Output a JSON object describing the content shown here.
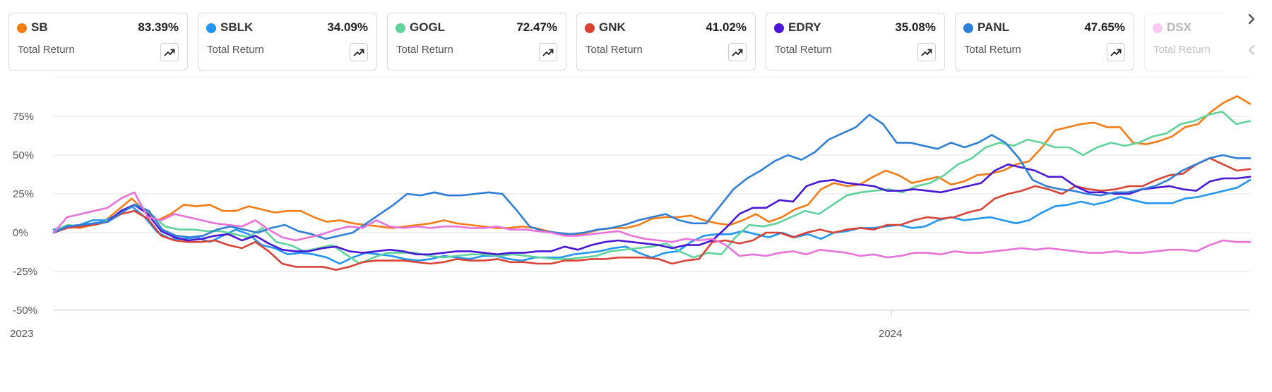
{
  "cards": [
    {
      "ticker": "SB",
      "value": "83.39%",
      "label": "Total Return",
      "color": "#f57c14",
      "faded": false
    },
    {
      "ticker": "SBLK",
      "value": "34.09%",
      "label": "Total Return",
      "color": "#2196f3",
      "faded": false
    },
    {
      "ticker": "GOGL",
      "value": "72.47%",
      "label": "Total Return",
      "color": "#5fd39a",
      "faded": false
    },
    {
      "ticker": "GNK",
      "value": "41.02%",
      "label": "Total Return",
      "color": "#d94335",
      "faded": false
    },
    {
      "ticker": "EDRY",
      "value": "35.08%",
      "label": "Total Return",
      "color": "#4a16d6",
      "faded": false
    },
    {
      "ticker": "PANL",
      "value": "47.65%",
      "label": "Total Return",
      "color": "#2f7fd8",
      "faded": false
    },
    {
      "ticker": "DSX",
      "value": "",
      "label": "Total Return",
      "color": "#e872d9",
      "faded": true
    }
  ],
  "icons": {
    "next": "chevron-right-icon",
    "prev": "chevron-left-icon",
    "trend": "trending-up-icon"
  },
  "chart_data": {
    "type": "line",
    "title": "",
    "xlabel": "",
    "ylabel": "",
    "x_ticks": [
      "2023",
      "2024"
    ],
    "y_ticks": [
      "75%",
      "50%",
      "25%",
      "0%",
      "-25%",
      "-50%"
    ],
    "ylim": [
      -50,
      100
    ],
    "grid": true,
    "x_range": [
      "2023-01",
      "2024-05"
    ],
    "series": [
      {
        "name": "SB",
        "color": "#f57c14",
        "values": [
          0,
          4,
          3,
          5,
          8,
          15,
          22,
          14,
          8,
          12,
          18,
          17,
          18,
          14,
          14,
          17,
          15,
          13,
          14,
          14,
          10,
          7,
          8,
          6,
          5,
          4,
          3,
          4,
          5,
          6,
          8,
          6,
          5,
          4,
          3,
          3,
          4,
          3,
          1,
          -1,
          -2,
          0,
          2,
          3,
          3,
          5,
          9,
          10,
          10,
          11,
          8,
          6,
          5,
          8,
          12,
          7,
          10,
          15,
          18,
          28,
          32,
          30,
          31,
          36,
          40,
          37,
          32,
          34,
          36,
          31,
          33,
          37,
          38,
          40,
          44,
          46,
          55,
          66,
          68,
          70,
          71,
          68,
          68,
          58,
          57,
          59,
          62,
          68,
          70,
          78,
          84,
          88,
          83
        ]
      },
      {
        "name": "SBLK",
        "color": "#2196f3",
        "values": [
          2,
          4,
          5,
          8,
          8,
          12,
          17,
          10,
          0,
          -4,
          -4,
          -3,
          -6,
          -2,
          2,
          -1,
          -8,
          -10,
          -14,
          -13,
          -14,
          -16,
          -20,
          -16,
          -13,
          -14,
          -15,
          -17,
          -18,
          -17,
          -15,
          -16,
          -17,
          -15,
          -15,
          -17,
          -18,
          -16,
          -16,
          -16,
          -14,
          -13,
          -12,
          -10,
          -9,
          -13,
          -16,
          -13,
          -12,
          -6,
          -2,
          -1,
          -1,
          1,
          -1,
          -3,
          0,
          -3,
          -1,
          -4,
          0,
          1,
          3,
          3,
          4,
          5,
          3,
          4,
          8,
          10,
          8,
          9,
          10,
          8,
          6,
          8,
          13,
          17,
          18,
          20,
          18,
          20,
          23,
          21,
          19,
          19,
          19,
          22,
          23,
          25,
          27,
          29,
          34
        ]
      },
      {
        "name": "GOGL",
        "color": "#5fd39a",
        "values": [
          1,
          5,
          4,
          6,
          8,
          14,
          18,
          12,
          4,
          2,
          2,
          1,
          1,
          -1,
          -3,
          3,
          -6,
          -8,
          -12,
          -10,
          -8,
          -14,
          -20,
          -16,
          -13,
          -13,
          -13,
          -15,
          -16,
          -15,
          -14,
          -14,
          -15,
          -14,
          -15,
          -16,
          -17,
          -17,
          -16,
          -15,
          -12,
          -11,
          -10,
          -9,
          -7,
          -12,
          -16,
          -13,
          -14,
          -3,
          5,
          4,
          6,
          10,
          14,
          12,
          18,
          24,
          26,
          27,
          28,
          26,
          30,
          32,
          37,
          44,
          48,
          55,
          58,
          56,
          60,
          58,
          55,
          55,
          50,
          55,
          58,
          56,
          58,
          62,
          64,
          70,
          72,
          76,
          78,
          70,
          72
        ]
      },
      {
        "name": "GNK",
        "color": "#d94335",
        "values": [
          0,
          3,
          4,
          5,
          7,
          12,
          14,
          9,
          -2,
          -5,
          -6,
          -6,
          -5,
          -8,
          -10,
          -6,
          -12,
          -20,
          -22,
          -22,
          -22,
          -24,
          -22,
          -19,
          -18,
          -18,
          -18,
          -19,
          -20,
          -19,
          -17,
          -18,
          -18,
          -17,
          -19,
          -19,
          -20,
          -20,
          -18,
          -18,
          -17,
          -17,
          -16,
          -16,
          -16,
          -17,
          -20,
          -18,
          -17,
          -6,
          -5,
          -7,
          -5,
          0,
          0,
          -3,
          0,
          2,
          0,
          2,
          3,
          2,
          5,
          5,
          8,
          10,
          9,
          10,
          13,
          15,
          22,
          25,
          27,
          30,
          28,
          25,
          30,
          28,
          27,
          28,
          30,
          30,
          34,
          37,
          38,
          44,
          48,
          44,
          40,
          41
        ]
      },
      {
        "name": "EDRY",
        "color": "#4a16d6",
        "values": [
          0,
          4,
          5,
          6,
          7,
          14,
          18,
          12,
          1,
          -3,
          -5,
          -4,
          -2,
          -1,
          -5,
          -2,
          -7,
          -11,
          -12,
          -12,
          -10,
          -9,
          -12,
          -13,
          -12,
          -11,
          -12,
          -14,
          -14,
          -13,
          -12,
          -12,
          -13,
          -14,
          -13,
          -13,
          -12,
          -12,
          -9,
          -11,
          -8,
          -6,
          -5,
          -6,
          -7,
          -8,
          -10,
          -8,
          -8,
          -5,
          3,
          12,
          16,
          16,
          21,
          20,
          30,
          33,
          34,
          32,
          31,
          30,
          27,
          27,
          28,
          27,
          26,
          28,
          30,
          32,
          40,
          44,
          42,
          40,
          36,
          36,
          30,
          26,
          26,
          25,
          25,
          28,
          29,
          30,
          28,
          27,
          33,
          35,
          35,
          36
        ]
      },
      {
        "name": "PANL",
        "color": "#2f7fd8",
        "values": [
          0,
          4,
          5,
          6,
          7,
          13,
          18,
          14,
          2,
          -2,
          -3,
          -2,
          2,
          4,
          2,
          0,
          3,
          5,
          1,
          -1,
          -4,
          -2,
          0,
          6,
          12,
          18,
          25,
          24,
          26,
          24,
          24,
          25,
          26,
          25,
          15,
          4,
          1,
          0,
          -1,
          0,
          2,
          3,
          5,
          8,
          10,
          12,
          8,
          6,
          6,
          17,
          28,
          35,
          40,
          46,
          50,
          47,
          52,
          60,
          64,
          68,
          76,
          70,
          58,
          58,
          56,
          54,
          58,
          55,
          58,
          63,
          58,
          48,
          34,
          30,
          28,
          27,
          25,
          24,
          26,
          26,
          28,
          30,
          34,
          40,
          44,
          48,
          50,
          48,
          48
        ]
      },
      {
        "name": "DSX",
        "color": "#e872d9",
        "values": [
          0,
          10,
          12,
          14,
          16,
          22,
          26,
          10,
          8,
          12,
          10,
          8,
          6,
          5,
          4,
          8,
          2,
          -3,
          -5,
          -3,
          -1,
          2,
          4,
          3,
          8,
          4,
          3,
          4,
          3,
          4,
          4,
          3,
          3,
          4,
          2,
          2,
          1,
          0,
          -2,
          -2,
          -1,
          0,
          1,
          -2,
          -4,
          -5,
          -6,
          -4,
          -5,
          -4,
          -8,
          -15,
          -14,
          -15,
          -13,
          -12,
          -14,
          -11,
          -12,
          -13,
          -15,
          -14,
          -16,
          -15,
          -13,
          -13,
          -14,
          -12,
          -13,
          -13,
          -12,
          -11,
          -10,
          -11,
          -10,
          -11,
          -12,
          -13,
          -13,
          -12,
          -13,
          -13,
          -12,
          -11,
          -11,
          -12,
          -8,
          -5,
          -6,
          -6
        ]
      }
    ]
  }
}
